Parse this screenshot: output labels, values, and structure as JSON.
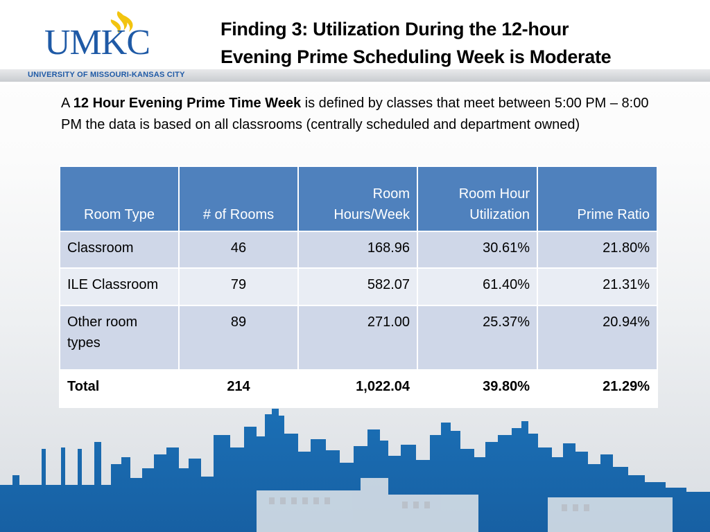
{
  "logo": {
    "wordmark": "UMKC",
    "subtitle": "UNIVERSITY OF MISSOURI-KANSAS CITY",
    "brand_blue": "#1f5aa6",
    "accent_gold": "#f2c40f"
  },
  "title": {
    "line1": "Finding 3: Utilization During the 12-hour",
    "line2": "Evening Prime Scheduling Week is Moderate"
  },
  "intro": {
    "prefix": "A ",
    "bold": "12 Hour Evening Prime Time Week",
    "rest": " is defined by classes that meet between 5:00 PM – 8:00 PM the data is based on all classrooms (centrally scheduled and department owned)"
  },
  "table": {
    "header_color": "#4f81bd",
    "headers": [
      "Room Type",
      "# of Rooms",
      "Room Hours/Week",
      "Room Hour Utilization",
      "Prime Ratio"
    ],
    "header_lines": [
      [
        "Room Type"
      ],
      [
        "# of Rooms"
      ],
      [
        "Room",
        "Hours/Week"
      ],
      [
        "Room Hour",
        "Utilization"
      ],
      [
        "Prime Ratio"
      ]
    ],
    "rows": [
      [
        "Classroom",
        "46",
        "168.96",
        "30.61%",
        "21.80%"
      ],
      [
        "ILE Classroom",
        "79",
        "582.07",
        "61.40%",
        "21.31%"
      ],
      [
        "Other room types",
        "89",
        "271.00",
        "25.37%",
        "20.94%"
      ]
    ],
    "total": [
      "Total",
      "214",
      "1,022.04",
      "39.80%",
      "21.29%"
    ]
  },
  "skyline": {
    "icon": "kansas-city-skyline-graphic",
    "color": "#1b6fb5"
  }
}
